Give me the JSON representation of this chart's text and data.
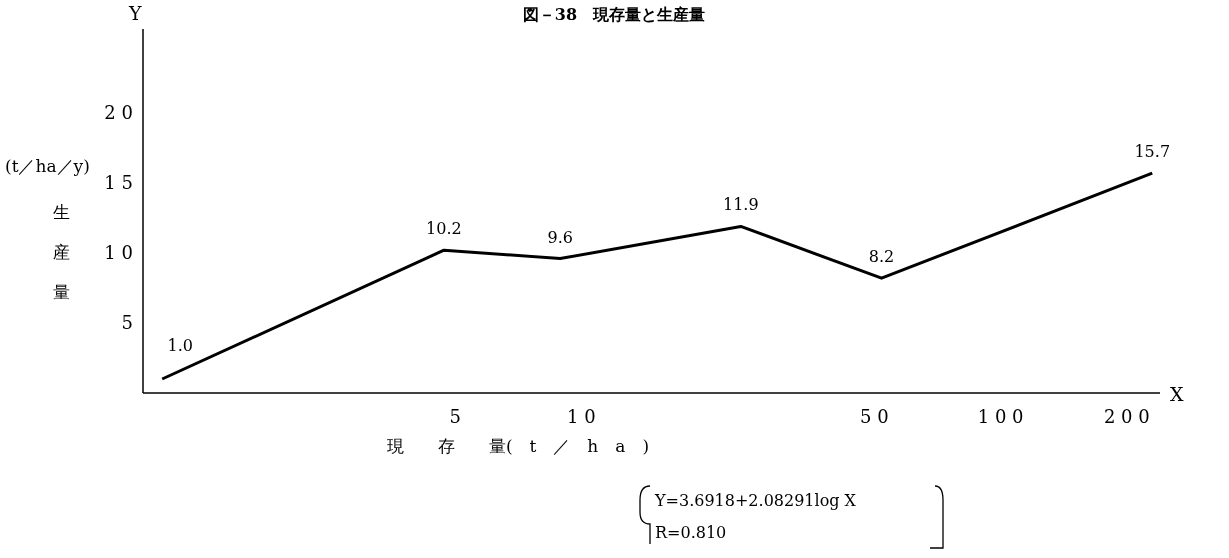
{
  "chart_data": {
    "type": "line",
    "title": "図－38　現存量と生産量",
    "xlabel": "現　　存　　量(　t　／　h　a　)",
    "ylabel": "生産量",
    "x": [
      1,
      4.7,
      8.9,
      24,
      52,
      230
    ],
    "values": [
      1.0,
      10.2,
      9.6,
      11.9,
      8.2,
      15.7
    ],
    "value_labels": [
      "1.0",
      "10.2",
      "9.6",
      "11.9",
      "8.2",
      "15.7"
    ],
    "color": "#000000",
    "log": "x",
    "xlim": [
      0.9,
      240
    ],
    "ylim": [
      0,
      26
    ],
    "xticks": [
      5,
      10,
      50,
      100,
      200
    ],
    "yticks": [
      5,
      10,
      15,
      20
    ],
    "annotations": [
      "Y",
      "X",
      "(t／ha／y)",
      "Y=3.6918+2.08291log X",
      "R=0.810"
    ]
  }
}
